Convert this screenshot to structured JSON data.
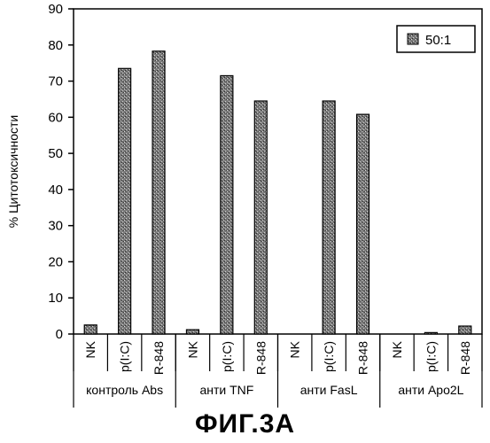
{
  "chart_data": {
    "type": "bar",
    "ylabel": "% Цитотоксичности",
    "ylim": [
      0,
      90
    ],
    "yticks": [
      0,
      10,
      20,
      30,
      40,
      50,
      60,
      70,
      80,
      90
    ],
    "grid": false,
    "legend_position": "top-right",
    "series": [
      {
        "name": "50:1",
        "pattern": "stippled",
        "values": [
          2.5,
          73.5,
          78.3,
          1.2,
          71.5,
          64.5,
          0,
          64.5,
          60.8,
          0,
          0.4,
          2.2
        ]
      }
    ],
    "categories": [
      "NK",
      "p(I:C)",
      "R-848",
      "NK",
      "p(I:C)",
      "R-848",
      "NK",
      "p(I:C)",
      "R-848",
      "NK",
      "p(I:C)",
      "R-848"
    ],
    "groups": [
      {
        "label": "контроль Abs",
        "size": 3
      },
      {
        "label": "анти TNF",
        "size": 3
      },
      {
        "label": "анти FasL",
        "size": 3
      },
      {
        "label": "анти Apo2L",
        "size": 3
      }
    ],
    "colors": {
      "bar_fill": "#7a7a7a",
      "bar_stroke": "#000000",
      "stipple_light": "#d9d9d9"
    }
  },
  "figure_label": "ФИГ.3А"
}
